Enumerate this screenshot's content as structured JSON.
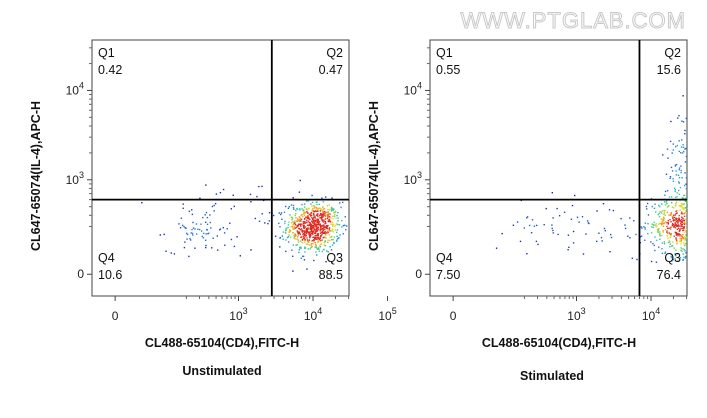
{
  "watermark": "WWW.PTGLAB.COM",
  "chart_data": [
    {
      "type": "scatter",
      "caption": "Unstimulated",
      "xlabel": "CL488-65104(CD4),FITC-H",
      "ylabel": "CL647-65074(IL-4),APC-H",
      "x_ticks": [
        {
          "label": "0",
          "value": 0
        },
        {
          "label": "10",
          "sup": "3",
          "value": 1000
        },
        {
          "label": "10",
          "sup": "4",
          "value": 10000
        },
        {
          "label": "10",
          "sup": "5",
          "value": 100000
        }
      ],
      "y_ticks": [
        {
          "label": "0",
          "value": 0
        },
        {
          "label": "10",
          "sup": "3",
          "value": 1000
        },
        {
          "label": "10",
          "sup": "4",
          "value": 10000
        }
      ],
      "gate": {
        "x": 2800,
        "y": 600
      },
      "quadrants": [
        {
          "name": "Q1",
          "value": "0.42"
        },
        {
          "name": "Q2",
          "value": "0.47"
        },
        {
          "name": "Q3",
          "value": "88.5"
        },
        {
          "name": "Q4",
          "value": "10.6"
        }
      ],
      "populations": [
        {
          "x": 10000,
          "y": 300,
          "spread_x": 0.18,
          "spread_y": 0.14,
          "count": 720
        },
        {
          "x": 300,
          "y": 280,
          "spread_x": 0.22,
          "spread_y": 0.12,
          "count": 70
        },
        {
          "x": 1500,
          "y": 320,
          "spread_x": 0.55,
          "spread_y": 0.25,
          "count": 40
        },
        {
          "x": 2000,
          "y": 800,
          "spread_x": 0.6,
          "spread_y": 0.15,
          "count": 6
        }
      ]
    },
    {
      "type": "scatter",
      "caption": "Stimulated",
      "xlabel": "CL488-65104(CD4),FITC-H",
      "ylabel": "CL647-65074(IL-4),APC-H",
      "x_ticks": [
        {
          "label": "0",
          "value": 0
        },
        {
          "label": "10",
          "sup": "3",
          "value": 1000
        },
        {
          "label": "10",
          "sup": "4",
          "value": 10000
        },
        {
          "label": "10",
          "sup": "5",
          "value": 100000
        }
      ],
      "y_ticks": [
        {
          "label": "0",
          "value": 0
        },
        {
          "label": "10",
          "sup": "3",
          "value": 1000
        },
        {
          "label": "10",
          "sup": "4",
          "value": 10000
        }
      ],
      "gate": {
        "x": 7000,
        "y": 600
      },
      "quadrants": [
        {
          "name": "Q1",
          "value": "0.55"
        },
        {
          "name": "Q2",
          "value": "15.6"
        },
        {
          "name": "Q3",
          "value": "76.4"
        },
        {
          "name": "Q4",
          "value": "7.50"
        }
      ],
      "populations": [
        {
          "x": 28000,
          "y": 320,
          "spread_x": 0.22,
          "spread_y": 0.18,
          "count": 640
        },
        {
          "x": 30000,
          "y": 1500,
          "spread_x": 0.15,
          "spread_y": 0.35,
          "count": 150
        },
        {
          "x": 3000,
          "y": 300,
          "spread_x": 0.55,
          "spread_y": 0.15,
          "count": 60
        },
        {
          "x": 300,
          "y": 320,
          "spread_x": 0.3,
          "spread_y": 0.15,
          "count": 25
        }
      ]
    }
  ]
}
